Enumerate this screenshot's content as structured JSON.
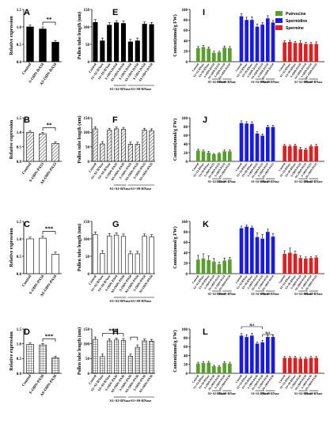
{
  "figure": {
    "panel_letters": [
      "A",
      "E",
      "I",
      "B",
      "F",
      "J",
      "C",
      "G",
      "K",
      "D",
      "H",
      "L"
    ],
    "colors": {
      "bar_dark": "#000000",
      "bar_gray": "#888888",
      "green": "#5a9e2f",
      "blue": "#1a1ae6",
      "red": "#e02020",
      "frame": "#000000"
    }
  },
  "chart_data": [
    {
      "id": "A",
      "type": "bar",
      "style": "solid-black",
      "ylabel": "Relative expression",
      "ylim": [
        0,
        1.5
      ],
      "yticks": [
        "0.0",
        "0.5",
        "1.0",
        "1.5"
      ],
      "categories": [
        "Control",
        "S-ODN-DA34",
        "AS-ODN-DA34"
      ],
      "values": [
        1.0,
        0.94,
        0.56
      ],
      "errors": [
        0.05,
        0.06,
        0.05
      ],
      "significance": [
        {
          "from": 1,
          "to": 2,
          "label": "**"
        }
      ]
    },
    {
      "id": "B",
      "type": "bar",
      "style": "diagonal-hatch",
      "ylabel": "Relative expression",
      "ylim": [
        0,
        1.5
      ],
      "yticks": [
        "0.0",
        "0.5",
        "1.0",
        "1.5"
      ],
      "categories": [
        "Control",
        "S-ODN-PA33",
        "AS-ODN-PA33"
      ],
      "values": [
        1.0,
        0.95,
        0.62
      ],
      "errors": [
        0.05,
        0.05,
        0.05
      ],
      "significance": [
        {
          "from": 1,
          "to": 2,
          "label": "**"
        }
      ]
    },
    {
      "id": "C",
      "type": "bar",
      "style": "open",
      "ylabel": "Relative expression",
      "ylim": [
        0,
        1.5
      ],
      "yticks": [
        "0.0",
        "0.5",
        "1.0",
        "1.5"
      ],
      "categories": [
        "Control",
        "S-ODN-PA34",
        "AS-ODN-PA34"
      ],
      "values": [
        1.0,
        1.02,
        0.56
      ],
      "errors": [
        0.05,
        0.06,
        0.06
      ],
      "significance": [
        {
          "from": 1,
          "to": 2,
          "label": "***"
        }
      ]
    },
    {
      "id": "D",
      "type": "bar",
      "style": "grid",
      "ylabel": "Relative expression",
      "ylim": [
        0,
        1.5
      ],
      "yticks": [
        "0.0",
        "0.5",
        "1.0",
        "1.5"
      ],
      "categories": [
        "Control",
        "S-ODN-PA36",
        "AS-ODN-PA36"
      ],
      "values": [
        0.98,
        0.96,
        0.52
      ],
      "errors": [
        0.05,
        0.05,
        0.06
      ],
      "significance": [
        {
          "from": 1,
          "to": 2,
          "label": "***"
        }
      ]
    },
    {
      "id": "E",
      "type": "bar",
      "style": "solid-black",
      "ylabel": "Pollen tube length (um)",
      "ylim": [
        0,
        150
      ],
      "yticks": [
        "0",
        "50",
        "100",
        "150"
      ],
      "categories": [
        "Control",
        "S1+S2-RNase",
        "S3+S9-RNase",
        "S-ODN-DA34",
        "AS-ODN-DA34",
        "S-ODN-DA34",
        "AS-ODN-DA34",
        "S-ODN-DA34",
        "AS-ODN-DA34"
      ],
      "values": [
        113,
        60,
        105,
        112,
        110,
        57,
        60,
        108,
        107
      ],
      "errors": [
        8,
        8,
        7,
        6,
        7,
        7,
        8,
        6,
        6
      ],
      "groups": [
        {
          "label": "S1+S2-RNase",
          "from": 3,
          "to": 4
        },
        {
          "label": "S3+S9-RNase",
          "from": 5,
          "to": 8
        }
      ]
    },
    {
      "id": "F",
      "type": "bar",
      "style": "diagonal-hatch",
      "ylabel": "Pollen tube length (um)",
      "ylim": [
        0,
        150
      ],
      "yticks": [
        "0",
        "50",
        "100",
        "150"
      ],
      "categories": [
        "Control",
        "S1+S2-RNase",
        "S3+S9-RNase",
        "S-ODN-PA33",
        "AS-ODN-PA33",
        "S-ODN-PA33",
        "AS-ODN-PA33",
        "S-ODN-PA33",
        "AS-ODN-PA33"
      ],
      "values": [
        112,
        60,
        107,
        112,
        110,
        59,
        59,
        108,
        106
      ],
      "errors": [
        7,
        8,
        7,
        6,
        7,
        7,
        7,
        6,
        6
      ],
      "groups": [
        {
          "label": "S1+S2-RNase",
          "from": 3,
          "to": 4
        },
        {
          "label": "S3+S9-RNase",
          "from": 5,
          "to": 8
        }
      ]
    },
    {
      "id": "G",
      "type": "bar",
      "style": "open",
      "ylabel": "Pollen tube length (um)",
      "ylim": [
        0,
        150
      ],
      "yticks": [
        "0",
        "50",
        "100",
        "150"
      ],
      "categories": [
        "Control",
        "S1+S2-RNase",
        "S3+S9-RNase",
        "S-ODN-PA34",
        "AS-ODN-PA34",
        "S-ODN-PA34",
        "AS-ODN-PA34",
        "S-ODN-PA34",
        "AS-ODN-PA34"
      ],
      "values": [
        113,
        58,
        108,
        111,
        107,
        57,
        57,
        108,
        106
      ],
      "errors": [
        7,
        8,
        7,
        6,
        7,
        7,
        7,
        6,
        6
      ],
      "groups": [
        {
          "label": "S1+S2-RNase",
          "from": 3,
          "to": 4
        },
        {
          "label": "S3+S9-RNase",
          "from": 5,
          "to": 8
        }
      ]
    },
    {
      "id": "H",
      "type": "bar",
      "style": "grid",
      "ylabel": "Pollen tube length (um)",
      "ylim": [
        0,
        150
      ],
      "yticks": [
        "0",
        "50",
        "100",
        "150"
      ],
      "categories": [
        "Control",
        "S1+S2-RNase",
        "S3+S9-RNase",
        "S-ODN-PA36",
        "AS-ODN-PA36",
        "S-ODN-PA36",
        "AS-ODN-PA36",
        "S-ODN-PA36",
        "AS-ODN-PA36"
      ],
      "values": [
        115,
        57,
        110,
        113,
        111,
        58,
        88,
        110,
        109
      ],
      "errors": [
        8,
        8,
        7,
        6,
        7,
        7,
        8,
        6,
        6
      ],
      "groups": [
        {
          "label": "S1+S2-RNase",
          "from": 3,
          "to": 4
        },
        {
          "label": "S3+S9-RNase",
          "from": 5,
          "to": 8
        }
      ],
      "significance": [
        {
          "from": 1,
          "to": 4,
          "label": "***"
        },
        {
          "from": 5,
          "to": 6,
          "label": ""
        }
      ]
    },
    {
      "id": "I",
      "type": "bar",
      "style": "solid-color",
      "ylabel": "Content(nmol/g FW)",
      "ylim": [
        0,
        100
      ],
      "yticks": [
        "0",
        "20",
        "40",
        "60",
        "80",
        "100"
      ],
      "categories": [
        "Control",
        "S1+S2-RNase",
        "S3+S9-RNase",
        "S-ODN-DA34",
        "AS-ODN-DA34",
        "S-ODN-DA34",
        "AS-ODN-DA34"
      ],
      "legend": [
        "Putrescine",
        "Spermidine",
        "Spermine"
      ],
      "legend_position": "top-right",
      "series": [
        {
          "name": "Putrescine",
          "values": [
            26,
            28,
            25,
            17,
            18,
            27,
            26
          ],
          "errors": [
            3,
            3,
            3,
            3,
            2,
            3,
            3
          ]
        },
        {
          "name": "Spermidine",
          "values": [
            87,
            80,
            80,
            67,
            71,
            83,
            75
          ],
          "errors": [
            5,
            5,
            6,
            5,
            4,
            5,
            4
          ]
        },
        {
          "name": "Spermine",
          "values": [
            37,
            38,
            36,
            36,
            34,
            34,
            34
          ],
          "errors": [
            3,
            3,
            3,
            4,
            3,
            3,
            4
          ]
        }
      ],
      "groups": [
        {
          "label": "S1+S2-RNase",
          "from": 3,
          "to": 4
        },
        {
          "label": "S3+S9-RNase",
          "from": 5,
          "to": 6
        }
      ]
    },
    {
      "id": "J",
      "type": "bar",
      "style": "solid-color",
      "ylabel": "Content(nmol/g FW)",
      "ylim": [
        0,
        100
      ],
      "yticks": [
        "0",
        "20",
        "40",
        "60",
        "80",
        "100"
      ],
      "categories": [
        "Control",
        "S1+S2-RNase",
        "S3+S9-RNase",
        "S-ODN-PA33",
        "AS-ODN-PA33",
        "S-ODN-PA33",
        "AS-ODN-PA33"
      ],
      "series": [
        {
          "name": "Putrescine",
          "values": [
            25,
            23,
            20,
            16,
            18,
            23,
            23
          ],
          "errors": [
            3,
            3,
            3,
            2,
            2,
            3,
            3
          ]
        },
        {
          "name": "Spermidine",
          "values": [
            88,
            87,
            86,
            64,
            59,
            79,
            79
          ],
          "errors": [
            5,
            4,
            5,
            4,
            4,
            4,
            4
          ]
        },
        {
          "name": "Spermine",
          "values": [
            36,
            35,
            36,
            28,
            27,
            35,
            35
          ],
          "errors": [
            3,
            3,
            3,
            4,
            3,
            3,
            4
          ]
        }
      ],
      "groups": [
        {
          "label": "S1+S2-RNase",
          "from": 3,
          "to": 4
        },
        {
          "label": "S3+S9-RNase",
          "from": 5,
          "to": 6
        }
      ]
    },
    {
      "id": "K",
      "type": "bar",
      "style": "solid-color",
      "ylabel": "Content(nmol/g FW)",
      "ylim": [
        0,
        100
      ],
      "yticks": [
        "0",
        "20",
        "40",
        "60",
        "80",
        "100"
      ],
      "categories": [
        "Control",
        "S1+S2-RNase",
        "S3+S9-RNase",
        "S-ODN-PA34",
        "AS-ODN-PA34",
        "S-ODN-PA34",
        "AS-ODN-PA34"
      ],
      "series": [
        {
          "name": "Putrescine",
          "values": [
            27,
            29,
            26,
            23,
            18,
            25,
            27
          ],
          "errors": [
            8,
            9,
            8,
            6,
            4,
            5,
            4
          ]
        },
        {
          "name": "Spermidine",
          "values": [
            87,
            90,
            88,
            70,
            67,
            80,
            71
          ],
          "errors": [
            4,
            3,
            3,
            8,
            8,
            5,
            6
          ]
        },
        {
          "name": "Spermine",
          "values": [
            38,
            40,
            38,
            30,
            29,
            30,
            31
          ],
          "errors": [
            6,
            9,
            5,
            4,
            3,
            3,
            3
          ]
        }
      ],
      "groups": [
        {
          "label": "S1+S2-RNase",
          "from": 3,
          "to": 4
        },
        {
          "label": "S3+S9-RNase",
          "from": 5,
          "to": 6
        }
      ]
    },
    {
      "id": "L",
      "type": "bar",
      "style": "solid-color",
      "ylabel": "Content(nmol/g FW)",
      "ylim": [
        0,
        100
      ],
      "yticks": [
        "0",
        "20",
        "40",
        "60",
        "80",
        "100"
      ],
      "categories": [
        "Control",
        "S1+S2-RNase",
        "S3+S9-RNase",
        "S-ODN-PA36",
        "AS-ODN-PA36",
        "S-ODN-PA36",
        "AS-ODN-PA36"
      ],
      "series": [
        {
          "name": "Putrescine",
          "values": [
            22,
            23,
            24,
            16,
            15,
            23,
            22
          ],
          "errors": [
            3,
            3,
            3,
            2,
            2,
            3,
            3
          ]
        },
        {
          "name": "Spermidine",
          "values": [
            85,
            82,
            85,
            67,
            70,
            82,
            82
          ],
          "errors": [
            5,
            5,
            5,
            4,
            4,
            4,
            5
          ]
        },
        {
          "name": "Spermine",
          "values": [
            35,
            35,
            35,
            33,
            33,
            35,
            35
          ],
          "errors": [
            3,
            3,
            3,
            3,
            3,
            3,
            3
          ]
        }
      ],
      "groups": [
        {
          "label": "S1+S2-RNase",
          "from": 3,
          "to": 4
        },
        {
          "label": "S3+S9-RNase",
          "from": 5,
          "to": 6
        }
      ],
      "significance": [
        {
          "from": 0,
          "to": 4,
          "label": "n.s"
        },
        {
          "from": 4,
          "to": 6,
          "label": "n.s"
        }
      ]
    }
  ]
}
